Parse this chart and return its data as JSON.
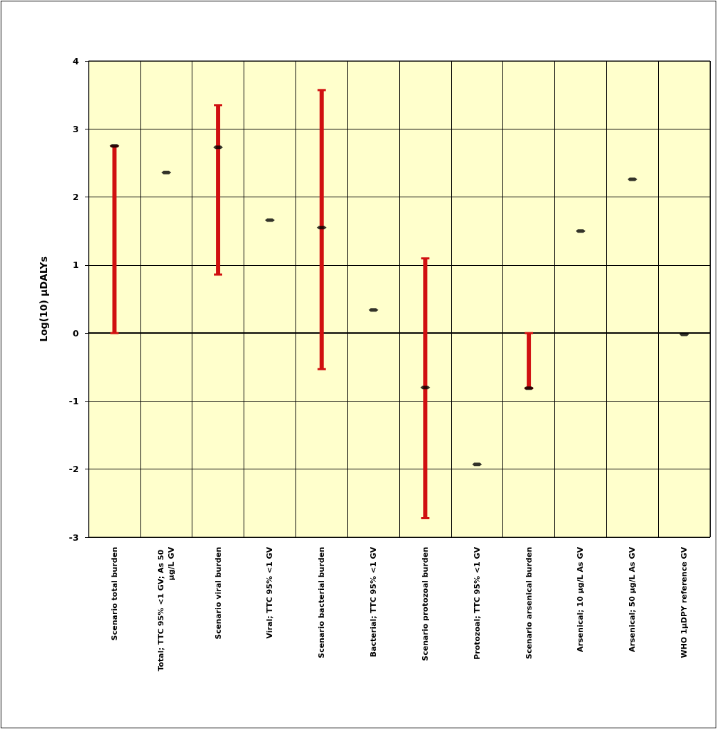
{
  "chart_data": {
    "type": "scatter",
    "ylabel": "Log(10) µDALYs",
    "categories": [
      "Scenario total burden",
      "Total; TTC 95% <1 GV; As 50 µg/L GV",
      "Scenario viral burden",
      "Viral; TTC 95% <1 GV",
      "Scenario bacterial burden",
      "Bacterial; TTC 95% <1 GV",
      "Scenario protozoal burden",
      "Protozoal; TTC 95% <1 GV",
      "Scenario arsenical burden",
      "Arsenical; 10 µg/L As GV",
      "Arsenical; 50 µg/L As GV",
      "WHO 1µDPY reference GV"
    ],
    "series": [
      {
        "color": "#000000",
        "values": [
          2.75,
          2.36,
          2.73,
          1.66,
          1.55,
          0.34,
          -0.8,
          -1.93,
          -0.81,
          1.5,
          2.26,
          -0.02
        ],
        "errors": [
          [
            0,
            2.75
          ],
          null,
          [
            0.86,
            3.35
          ],
          null,
          [
            -0.53,
            3.57
          ],
          null,
          [
            -2.72,
            1.1
          ],
          null,
          [
            -0.81,
            0
          ],
          null,
          null,
          null
        ]
      }
    ],
    "ylim": [
      -3,
      4
    ],
    "yticks": [
      -3,
      -2,
      -1,
      0,
      1,
      2,
      3,
      4
    ],
    "grid": true
  }
}
